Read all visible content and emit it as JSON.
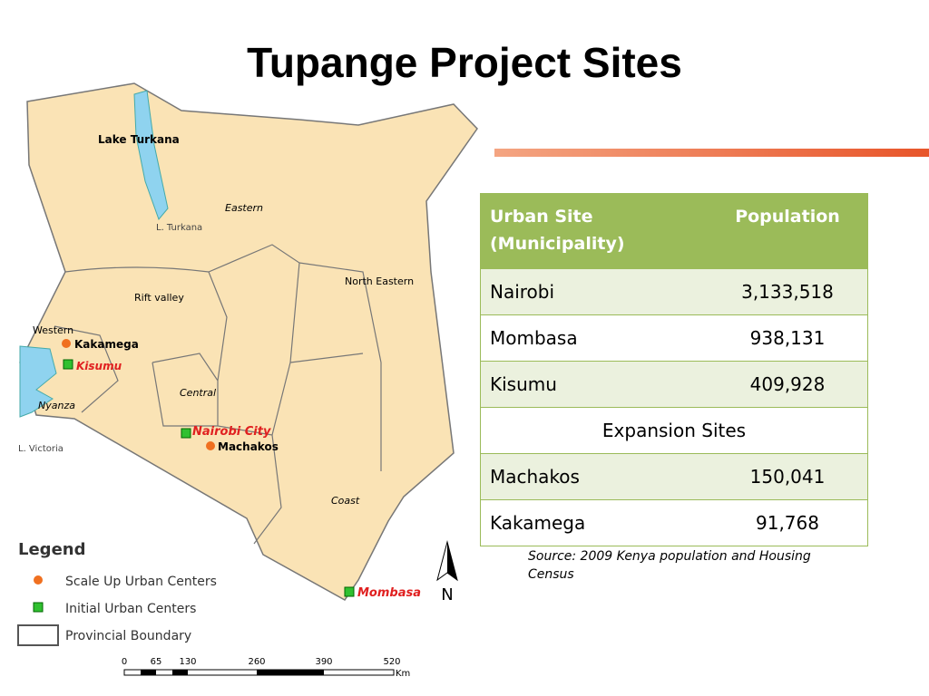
{
  "title": "Tupange Project Sites",
  "map": {
    "labels": [
      "Lake Turkana",
      "L. Turkana",
      "Eastern",
      "North Eastern",
      "Rift valley",
      "Western",
      "Kakamega",
      "Kisumu",
      "Central",
      "Nyanza",
      "Nairobi City",
      "Machakos",
      "L. Victoria",
      "Coast",
      "Mombasa"
    ],
    "legend": {
      "title": "Legend",
      "items": [
        "Scale Up Urban Centers",
        "Initial Urban Centers",
        "Provincial Boundary"
      ]
    },
    "scale": {
      "ticks": [
        "0",
        "65",
        "130",
        "260",
        "390",
        "520"
      ],
      "unit": "Km"
    },
    "north": "N"
  },
  "table": {
    "header": [
      "Urban Site (Municipality)",
      "Population"
    ],
    "rows": [
      [
        "Nairobi",
        "3,133,518"
      ],
      [
        "Mombasa",
        "938,131"
      ],
      [
        "Kisumu",
        "409,928"
      ]
    ],
    "section": "Expansion Sites",
    "rows2": [
      [
        "Machakos",
        "150,041"
      ],
      [
        "Kakamega",
        "91,768"
      ]
    ]
  },
  "source": "Source: 2009 Kenya population and Housing Census"
}
